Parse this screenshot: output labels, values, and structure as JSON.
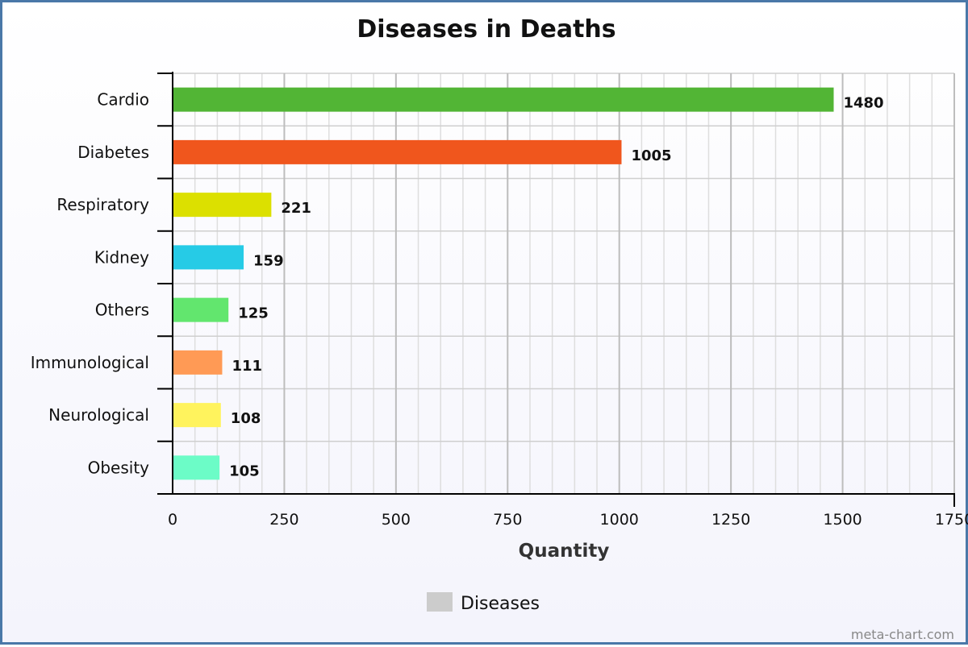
{
  "chart_data": {
    "type": "bar",
    "orientation": "horizontal",
    "title": "Diseases in Deaths",
    "xlabel": "Quantity",
    "ylabel": "",
    "categories": [
      "Cardio",
      "Diabetes",
      "Respiratory",
      "Kidney",
      "Others",
      "Immunological",
      "Neurological",
      "Obesity"
    ],
    "series": [
      {
        "name": "Diseases",
        "values": [
          1480,
          1005,
          221,
          159,
          125,
          111,
          108,
          105
        ],
        "colors": [
          "#52b535",
          "#f0561d",
          "#dce000",
          "#26cbe6",
          "#62e66e",
          "#ff9a55",
          "#fff35d",
          "#6cfcc7"
        ]
      }
    ],
    "xlim": [
      0,
      1750
    ],
    "xticks": [
      0,
      250,
      500,
      750,
      1000,
      1250,
      1500,
      1750
    ],
    "grid": true,
    "legend": {
      "position": "bottom-center",
      "entries": [
        "Diseases"
      ],
      "swatch_color": "#cccccc"
    },
    "data_labels": true
  },
  "credit": "meta-chart.com"
}
